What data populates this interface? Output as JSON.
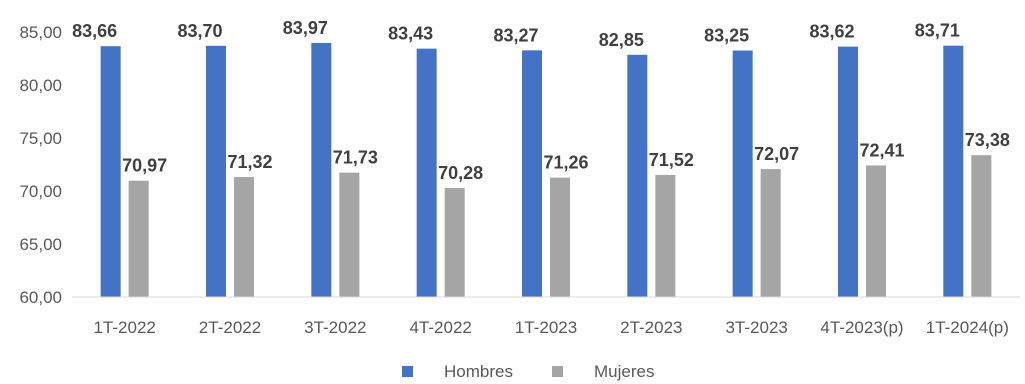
{
  "chart_data": {
    "type": "bar",
    "title": "",
    "xlabel": "",
    "ylabel": "",
    "ylim": [
      60,
      85
    ],
    "yticks": [
      60,
      65,
      70,
      75,
      80,
      85
    ],
    "ytick_labels": [
      "60,00",
      "65,00",
      "70,00",
      "75,00",
      "80,00",
      "85,00"
    ],
    "grid": false,
    "legend": "bottom-center",
    "categories": [
      "1T-2022",
      "2T-2022",
      "3T-2022",
      "4T-2022",
      "1T-2023",
      "2T-2023",
      "3T-2023",
      "4T-2023(p)",
      "1T-2024(p)"
    ],
    "series": [
      {
        "name": "Hombres",
        "color": "#4472C4",
        "values": [
          83.66,
          83.7,
          83.97,
          83.43,
          83.27,
          82.85,
          83.25,
          83.62,
          83.71
        ],
        "labels": [
          "83,66",
          "83,70",
          "83,97",
          "83,43",
          "83,27",
          "82,85",
          "83,25",
          "83,62",
          "83,71"
        ]
      },
      {
        "name": "Mujeres",
        "color": "#A5A5A5",
        "values": [
          70.97,
          71.32,
          71.73,
          70.28,
          71.26,
          71.52,
          72.07,
          72.41,
          73.38
        ],
        "labels": [
          "70,97",
          "71,32",
          "71,73",
          "70,28",
          "71,26",
          "71,52",
          "72,07",
          "72,41",
          "73,38"
        ]
      }
    ]
  }
}
